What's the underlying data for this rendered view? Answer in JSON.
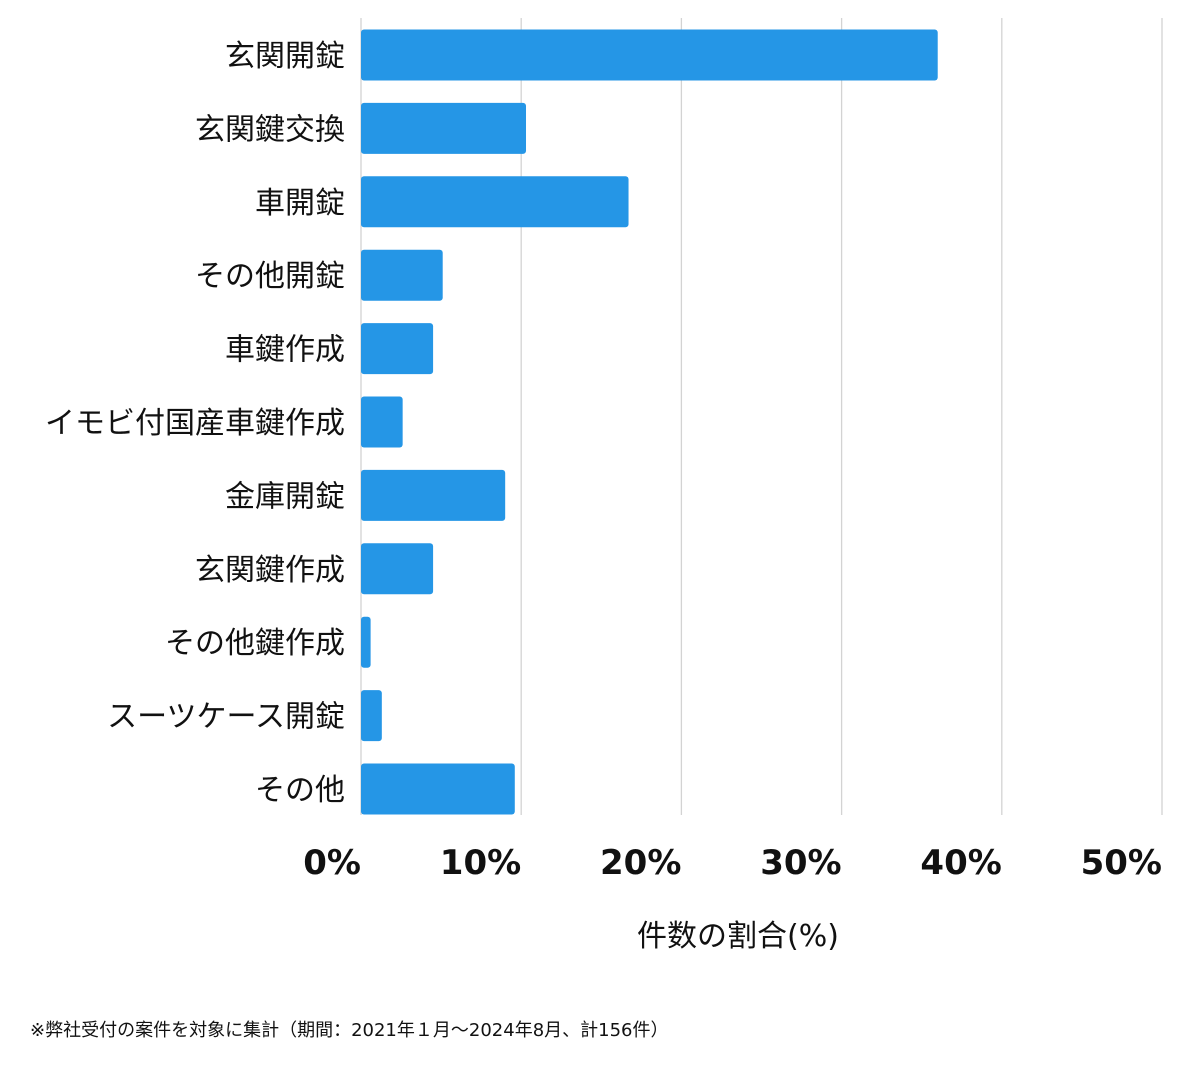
{
  "chart_data": {
    "type": "bar",
    "orientation": "horizontal",
    "categories": [
      "玄関開錠",
      "玄関鍵交換",
      "車開錠",
      "その他開錠",
      "車鍵作成",
      "イモビ付国産車鍵作成",
      "金庫開錠",
      "玄関鍵作成",
      "その他鍵作成",
      "スーツケース開錠",
      "その他"
    ],
    "values": [
      36,
      10.3,
      16.7,
      5.1,
      4.5,
      2.6,
      9,
      4.5,
      0.6,
      1.3,
      9.6
    ],
    "xlabel": "件数の割合(%)",
    "xlim": [
      0,
      50
    ],
    "xticks": [
      "0%",
      "10%",
      "20%",
      "30%",
      "40%",
      "50%"
    ],
    "grid": true,
    "colors": {
      "bar": "#2596e6",
      "grid": "#d3d3d3"
    }
  },
  "footnote": "※弊社受付の案件を対象に集計（期間：2021年１月〜2024年8月、計156件）"
}
